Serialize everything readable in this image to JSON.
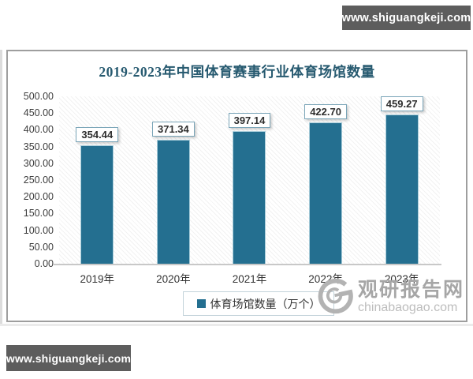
{
  "banners": {
    "top": "www.shiguangkeji.com",
    "bottom": "www.shiguangkeji.com"
  },
  "chart_data": {
    "type": "bar",
    "title": "2019-2023年中国体育赛事行业体育场馆数量",
    "categories": [
      "2019年",
      "2020年",
      "2021年",
      "2022年",
      "2023年"
    ],
    "values": [
      354.44,
      371.34,
      397.14,
      422.7,
      459.27
    ],
    "value_labels": [
      "354.44",
      "371.34",
      "397.14",
      "422.70",
      "459.27"
    ],
    "legend": [
      "体育场馆数量（万个）"
    ],
    "legend_position": "bottom",
    "xlabel": "",
    "ylabel": "",
    "ylim": [
      0,
      500
    ],
    "ytick_step": 50,
    "yticks": [
      "500.00",
      "450.00",
      "400.00",
      "350.00",
      "300.00",
      "250.00",
      "200.00",
      "150.00",
      "100.00",
      "50.00",
      "0.00"
    ],
    "grid": false,
    "bar_color": "#246f90",
    "plot_background": "diagonal-hatch"
  },
  "watermark": {
    "logo": "swirl-g-logo",
    "name": "观研报告网",
    "domain": "chinabaogao.com"
  },
  "colors": {
    "bar": "#246f90",
    "title": "#275a70",
    "banner_background": "#5d5d5d",
    "banner_text": "#ffffff",
    "card_border": "#9e9e9e",
    "label_box_border": "#7aa5b8",
    "axis_line": "#c8c8c8",
    "watermark_gray": "#a6a6a6"
  }
}
